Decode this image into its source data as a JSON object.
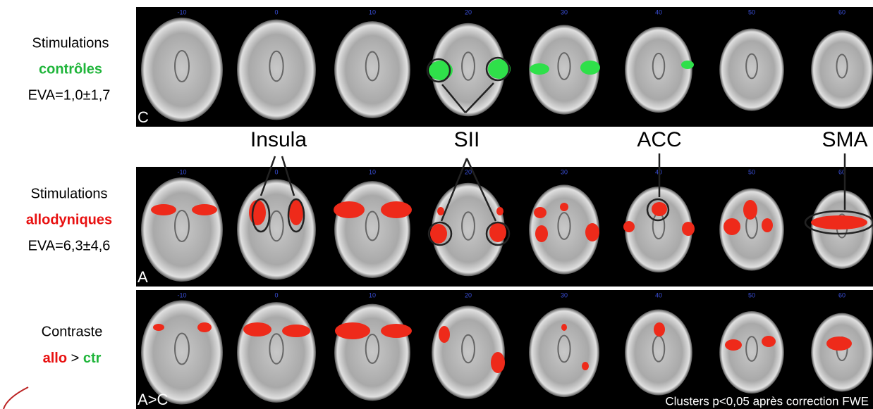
{
  "rows": [
    {
      "title": "Stimulations",
      "condition": "contrôles",
      "detail": "EVA=1,0±1,7",
      "panel": "C"
    },
    {
      "title": "Stimulations",
      "condition": "allodyniques",
      "detail": "EVA=6,3±4,6",
      "panel": "A"
    },
    {
      "title": "Contraste",
      "condition": [
        "allo",
        ">",
        "ctr"
      ],
      "panel": "A>C"
    }
  ],
  "slices": [
    -10,
    0,
    10,
    20,
    30,
    40,
    50,
    60
  ],
  "regions": [
    "Insula",
    "SII",
    "ACC",
    "SMA"
  ],
  "footnote": "Clusters p<0,05 après correction FWE"
}
